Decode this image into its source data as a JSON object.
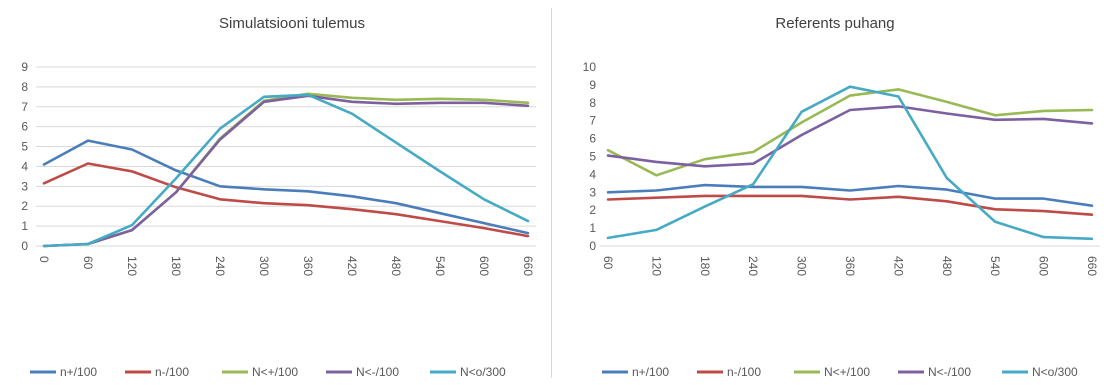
{
  "chart_data": [
    {
      "type": "line",
      "title": "Simulatsiooni tulemus",
      "xlabel": "",
      "ylabel": "",
      "categories": [
        "0",
        "60",
        "120",
        "180",
        "240",
        "300",
        "360",
        "420",
        "480",
        "540",
        "600",
        "660"
      ],
      "ylim": [
        0,
        9
      ],
      "yticks": [
        0,
        1,
        2,
        3,
        4,
        5,
        6,
        7,
        8,
        9
      ],
      "grid": true,
      "legend": "bottom",
      "series": [
        {
          "name": "n+/100",
          "color": "#4a7ebb",
          "values": [
            4.1,
            5.3,
            4.85,
            3.8,
            3.0,
            2.85,
            2.75,
            2.5,
            2.15,
            1.65,
            1.15,
            0.65
          ]
        },
        {
          "name": "n-/100",
          "color": "#be4b48",
          "values": [
            3.15,
            4.15,
            3.75,
            2.95,
            2.35,
            2.15,
            2.05,
            1.85,
            1.6,
            1.25,
            0.9,
            0.5
          ]
        },
        {
          "name": "N<+/100",
          "color": "#98b954",
          "values": [
            0.0,
            0.1,
            0.8,
            2.7,
            5.4,
            7.3,
            7.65,
            7.45,
            7.35,
            7.4,
            7.35,
            7.2
          ]
        },
        {
          "name": "N<-/100",
          "color": "#7d60a0",
          "values": [
            0.0,
            0.1,
            0.8,
            2.7,
            5.35,
            7.25,
            7.55,
            7.25,
            7.15,
            7.2,
            7.2,
            7.05
          ]
        },
        {
          "name": "N<o/300",
          "color": "#46aac5",
          "values": [
            0.0,
            0.1,
            1.05,
            3.4,
            5.9,
            7.5,
            7.6,
            6.65,
            5.2,
            3.75,
            2.35,
            1.25
          ]
        }
      ]
    },
    {
      "type": "line",
      "title": "Referents puhang",
      "xlabel": "",
      "ylabel": "",
      "categories": [
        "60",
        "120",
        "180",
        "240",
        "300",
        "360",
        "420",
        "480",
        "540",
        "600",
        "660"
      ],
      "ylim": [
        0,
        10
      ],
      "yticks": [
        0,
        1,
        2,
        3,
        4,
        5,
        6,
        7,
        8,
        9,
        10
      ],
      "grid": false,
      "legend": "bottom",
      "series": [
        {
          "name": "n+/100",
          "color": "#4a7ebb",
          "values": [
            3.0,
            3.1,
            3.4,
            3.3,
            3.3,
            3.1,
            3.35,
            3.15,
            2.65,
            2.65,
            2.25
          ]
        },
        {
          "name": "n-/100",
          "color": "#be4b48",
          "values": [
            2.6,
            2.7,
            2.8,
            2.8,
            2.8,
            2.6,
            2.75,
            2.5,
            2.05,
            1.95,
            1.75
          ]
        },
        {
          "name": "N<+/100",
          "color": "#98b954",
          "values": [
            5.35,
            3.95,
            4.85,
            5.25,
            6.9,
            8.4,
            8.75,
            8.05,
            7.3,
            7.55,
            7.6
          ]
        },
        {
          "name": "N<-/100",
          "color": "#7d60a0",
          "values": [
            5.05,
            4.7,
            4.45,
            4.6,
            6.2,
            7.6,
            7.8,
            7.4,
            7.05,
            7.1,
            6.85
          ]
        },
        {
          "name": "N<o/300",
          "color": "#46aac5",
          "values": [
            0.45,
            0.9,
            2.2,
            3.45,
            7.5,
            8.9,
            8.35,
            3.8,
            1.35,
            0.5,
            0.4
          ]
        }
      ]
    }
  ]
}
